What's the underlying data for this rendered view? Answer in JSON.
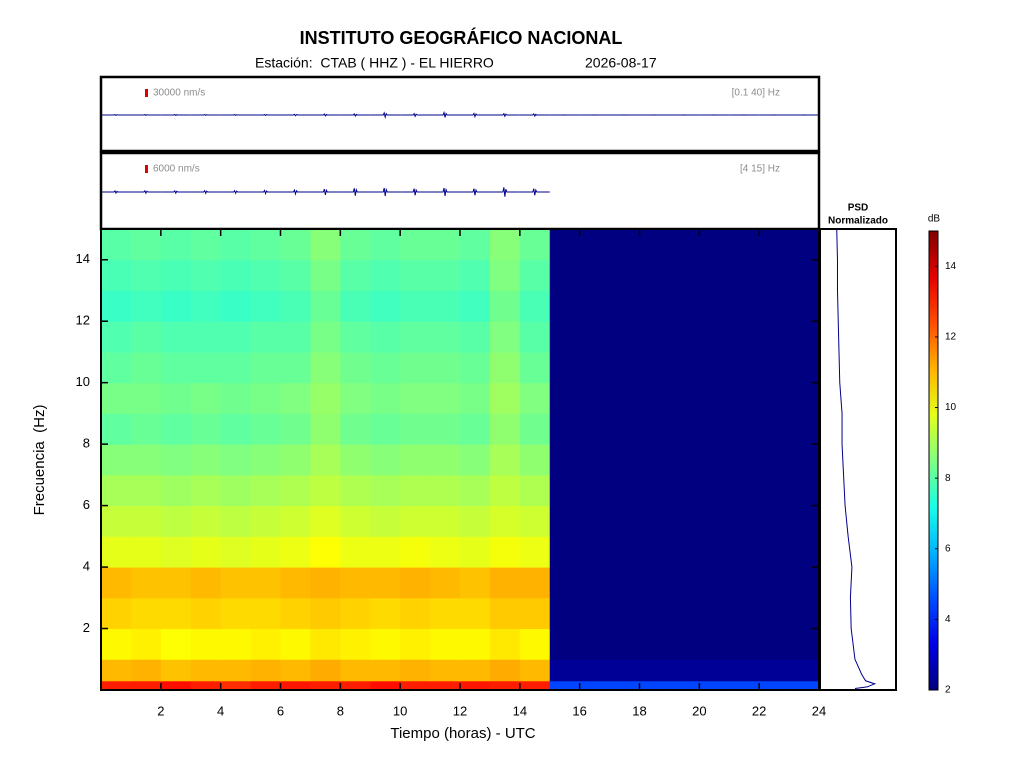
{
  "header": {
    "title": "INSTITUTO GEOGRÁFICO NACIONAL",
    "station": "Estación:  CTAB ( HHZ ) - EL HIERRO",
    "date": "2026-08-17"
  },
  "chart_data": [
    {
      "type": "trace",
      "scale": 30000,
      "scale_label": "30000 nm/s",
      "band_label": "[0.1 40] Hz",
      "color": "#00008b",
      "time": [
        0.5,
        1.5,
        2.5,
        3.5,
        4.5,
        5.5,
        6.5,
        7.5,
        8.5,
        9.5,
        10.5,
        11.5,
        12.5,
        13.5,
        14.5,
        15.5,
        16.5,
        17.5,
        18.5,
        19.5,
        20.5,
        21.5,
        22.5,
        23.5
      ],
      "values": [
        1500,
        1500,
        1800,
        1500,
        1500,
        1800,
        2500,
        3500,
        4000,
        8000,
        5000,
        9000,
        6000,
        5000,
        4000,
        400,
        400,
        400,
        400,
        400,
        400,
        400,
        400,
        400
      ]
    },
    {
      "type": "trace",
      "scale": 6000,
      "scale_label": "6000 nm/s",
      "band_label": "[4 15] Hz",
      "color": "#00008b",
      "time": [
        0.5,
        1.5,
        2.5,
        3.5,
        4.5,
        5.5,
        6.5,
        7.5,
        8.5,
        9.5,
        10.5,
        11.5,
        12.5,
        13.5,
        14.5,
        15.5,
        16.5,
        17.5,
        18.5,
        19.5,
        20.5,
        21.5,
        22.5,
        23.5
      ],
      "values": [
        800,
        900,
        900,
        1000,
        1000,
        1200,
        1500,
        2200,
        2800,
        3000,
        2500,
        3000,
        2500,
        3500,
        2500,
        null,
        null,
        null,
        null,
        null,
        null,
        null,
        null,
        null
      ]
    },
    {
      "type": "heatmap",
      "colormap": "jet",
      "x_edges": [
        0,
        1,
        2,
        3,
        4,
        5,
        6,
        7,
        8,
        9,
        10,
        11,
        12,
        13,
        14,
        15,
        16,
        17,
        18,
        19,
        20,
        21,
        22,
        23,
        24
      ],
      "y_edges": [
        0,
        0.3,
        1,
        2,
        3,
        4,
        5,
        6,
        7,
        8,
        9,
        10,
        11,
        12,
        13,
        14,
        15
      ],
      "z": [
        [
          13,
          13,
          13.2,
          13,
          12.8,
          13,
          13.1,
          13,
          13,
          13.2,
          13,
          13,
          13.1,
          13,
          13,
          4.5,
          4.5,
          4.5,
          4.5,
          4.5,
          4.5,
          4.5,
          4.5,
          4.5
        ],
        [
          11,
          11.1,
          10.9,
          11,
          11,
          11.1,
          11,
          11.2,
          11,
          11,
          11.1,
          11,
          11,
          11.2,
          11,
          2.3,
          2.3,
          2.3,
          2.3,
          2.3,
          2.3,
          2.3,
          2.3,
          2.3
        ],
        [
          10.2,
          10.3,
          10.1,
          10.2,
          10.2,
          10.3,
          10.2,
          10.4,
          10.3,
          10.2,
          10.3,
          10.2,
          10.2,
          10.4,
          10.2,
          2,
          2,
          2,
          2,
          2,
          2,
          2,
          2,
          2
        ],
        [
          10.7,
          10.6,
          10.6,
          10.7,
          10.6,
          10.6,
          10.7,
          10.8,
          10.7,
          10.6,
          10.7,
          10.6,
          10.6,
          10.8,
          10.8,
          2,
          2,
          2,
          2,
          2,
          2,
          2,
          2,
          2
        ],
        [
          11,
          10.9,
          10.9,
          11,
          10.9,
          10.9,
          11,
          11.1,
          11,
          11,
          11.1,
          11,
          10.9,
          11.1,
          11.1,
          2,
          2,
          2,
          2,
          2,
          2,
          2,
          2,
          2
        ],
        [
          9.8,
          9.8,
          9.7,
          9.8,
          9.7,
          9.8,
          9.9,
          10.1,
          9.9,
          9.9,
          10,
          9.9,
          9.8,
          10,
          9.9,
          2,
          2,
          2,
          2,
          2,
          2,
          2,
          2,
          2
        ],
        [
          9.4,
          9.4,
          9.3,
          9.4,
          9.3,
          9.4,
          9.5,
          9.7,
          9.5,
          9.4,
          9.5,
          9.5,
          9.4,
          9.6,
          9.5,
          2,
          2,
          2,
          2,
          2,
          2,
          2,
          2,
          2
        ],
        [
          9,
          9,
          8.9,
          9,
          8.9,
          9,
          9.1,
          9.3,
          9.1,
          9,
          9.1,
          9.1,
          9,
          9.3,
          9.1,
          2,
          2,
          2,
          2,
          2,
          2,
          2,
          2,
          2
        ],
        [
          8.6,
          8.6,
          8.5,
          8.6,
          8.5,
          8.6,
          8.7,
          9,
          8.7,
          8.6,
          8.7,
          8.7,
          8.6,
          9,
          8.7,
          2,
          2,
          2,
          2,
          2,
          2,
          2,
          2,
          2
        ],
        [
          8.1,
          8.2,
          8.1,
          8.2,
          8.1,
          8.2,
          8.3,
          8.7,
          8.3,
          8.2,
          8.3,
          8.3,
          8.2,
          8.7,
          8.3,
          2,
          2,
          2,
          2,
          2,
          2,
          2,
          2,
          2
        ],
        [
          8.4,
          8.4,
          8.3,
          8.4,
          8.3,
          8.4,
          8.5,
          8.8,
          8.5,
          8.4,
          8.5,
          8.5,
          8.4,
          8.9,
          8.5,
          2,
          2,
          2,
          2,
          2,
          2,
          2,
          2,
          2
        ],
        [
          8.1,
          8.2,
          8.1,
          8.1,
          8.1,
          8.2,
          8.2,
          8.6,
          8.3,
          8.2,
          8.3,
          8.3,
          8.2,
          8.7,
          8.2,
          2,
          2,
          2,
          2,
          2,
          2,
          2,
          2,
          2
        ],
        [
          7.9,
          8,
          7.9,
          7.9,
          7.9,
          8,
          8,
          8.4,
          8.1,
          8,
          8.1,
          8.1,
          8,
          8.5,
          8,
          2,
          2,
          2,
          2,
          2,
          2,
          2,
          2,
          2
        ],
        [
          7.6,
          7.7,
          7.6,
          7.7,
          7.6,
          7.7,
          7.8,
          8.2,
          7.8,
          7.7,
          7.8,
          7.8,
          7.7,
          8.3,
          7.8,
          2,
          2,
          2,
          2,
          2,
          2,
          2,
          2,
          2
        ],
        [
          7.8,
          7.9,
          7.8,
          7.9,
          7.8,
          7.9,
          8,
          8.4,
          8,
          7.9,
          8,
          8,
          7.9,
          8.5,
          8,
          2,
          2,
          2,
          2,
          2,
          2,
          2,
          2,
          2
        ],
        [
          8,
          8.1,
          8,
          8.1,
          8,
          8.1,
          8.2,
          8.6,
          8.2,
          8.1,
          8.2,
          8.2,
          8.1,
          8.6,
          8.2,
          2,
          2,
          2,
          2,
          2,
          2,
          2,
          2,
          2
        ]
      ],
      "xlim": [
        0,
        24
      ],
      "ylim": [
        0,
        15
      ],
      "xticks": [
        2,
        4,
        6,
        8,
        10,
        12,
        14,
        16,
        18,
        20,
        22,
        24
      ],
      "yticks": [
        2,
        4,
        6,
        8,
        10,
        12,
        14
      ],
      "xlabel": "Tiempo (horas) - UTC",
      "ylabel": "Frecuencia  (Hz)",
      "clim": [
        2,
        15
      ],
      "colorbar": {
        "label": "dB",
        "ticks": [
          2,
          4,
          6,
          8,
          10,
          12,
          14
        ]
      }
    },
    {
      "type": "psd",
      "title": "PSD",
      "subtitle": "Normalizado",
      "color": "#00008b",
      "frequency": [
        0.05,
        0.1,
        0.2,
        0.3,
        0.5,
        1,
        2,
        3,
        4,
        5,
        6,
        7,
        8,
        9,
        10,
        11,
        12,
        13,
        14,
        15
      ],
      "values": [
        0.46,
        0.62,
        0.72,
        0.6,
        0.55,
        0.46,
        0.41,
        0.4,
        0.42,
        0.37,
        0.33,
        0.31,
        0.29,
        0.29,
        0.26,
        0.25,
        0.24,
        0.23,
        0.23,
        0.22
      ]
    }
  ]
}
